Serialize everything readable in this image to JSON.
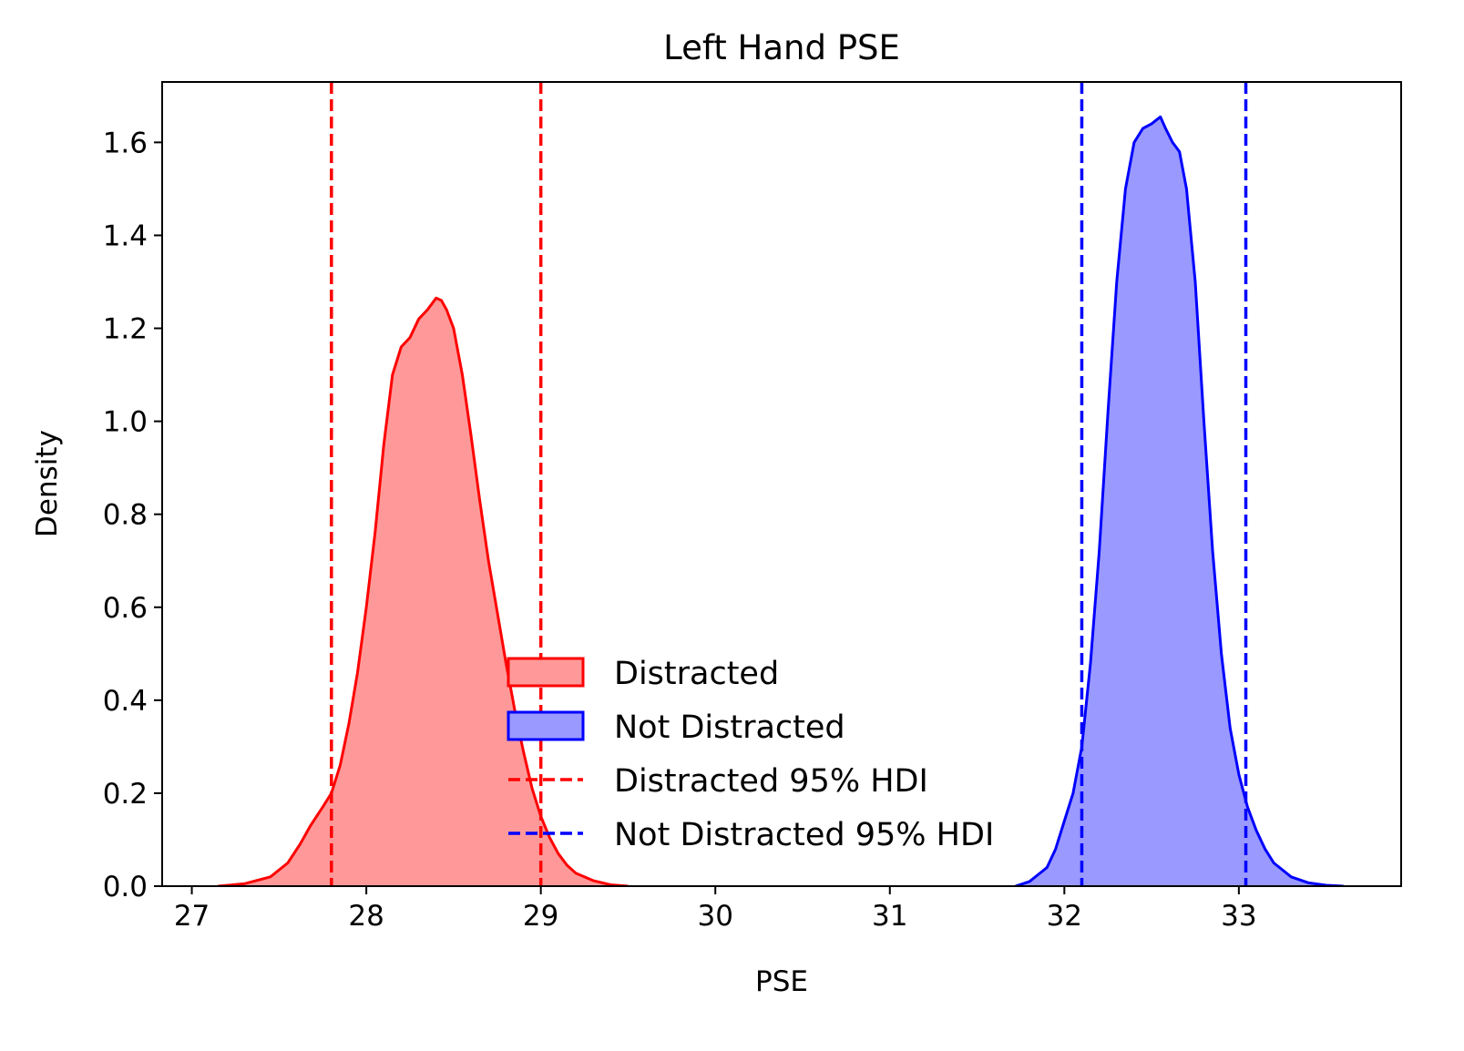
{
  "chart_data": {
    "type": "area",
    "title": "Left Hand PSE",
    "xlabel": "PSE",
    "ylabel": "Density",
    "xlim": [
      26.83,
      33.93
    ],
    "ylim": [
      0,
      1.73
    ],
    "xticks": [
      27,
      28,
      29,
      30,
      31,
      32,
      33
    ],
    "yticks": [
      0.0,
      0.2,
      0.4,
      0.6,
      0.8,
      1.0,
      1.2,
      1.4,
      1.6
    ],
    "grid": false,
    "legend_position": "lower-center",
    "series": [
      {
        "name": "Distracted",
        "color": "#ff0000",
        "fill": "#ff9999",
        "x": [
          27.15,
          27.3,
          27.45,
          27.55,
          27.62,
          27.68,
          27.75,
          27.8,
          27.85,
          27.9,
          27.95,
          28.0,
          28.05,
          28.1,
          28.15,
          28.2,
          28.25,
          28.3,
          28.35,
          28.4,
          28.43,
          28.46,
          28.5,
          28.55,
          28.6,
          28.65,
          28.7,
          28.75,
          28.8,
          28.85,
          28.9,
          28.95,
          29.0,
          29.05,
          29.1,
          29.15,
          29.2,
          29.3,
          29.4,
          29.5
        ],
        "y": [
          0.0,
          0.005,
          0.02,
          0.05,
          0.09,
          0.13,
          0.17,
          0.2,
          0.26,
          0.35,
          0.46,
          0.6,
          0.76,
          0.95,
          1.1,
          1.16,
          1.18,
          1.22,
          1.24,
          1.265,
          1.26,
          1.24,
          1.2,
          1.1,
          0.97,
          0.83,
          0.7,
          0.59,
          0.48,
          0.38,
          0.29,
          0.21,
          0.15,
          0.105,
          0.07,
          0.045,
          0.028,
          0.012,
          0.003,
          0.0
        ]
      },
      {
        "name": "Not Distracted",
        "color": "#0000ff",
        "fill": "#9999ff",
        "x": [
          31.72,
          31.8,
          31.9,
          31.95,
          32.0,
          32.05,
          32.1,
          32.15,
          32.2,
          32.25,
          32.3,
          32.35,
          32.4,
          32.45,
          32.5,
          32.55,
          32.58,
          32.62,
          32.66,
          32.7,
          32.75,
          32.8,
          32.85,
          32.9,
          32.95,
          33.0,
          33.05,
          33.1,
          33.15,
          33.2,
          33.3,
          33.4,
          33.5,
          33.6
        ],
        "y": [
          0.0,
          0.01,
          0.04,
          0.08,
          0.14,
          0.2,
          0.3,
          0.48,
          0.72,
          1.02,
          1.3,
          1.5,
          1.6,
          1.63,
          1.64,
          1.655,
          1.63,
          1.6,
          1.58,
          1.5,
          1.3,
          1.0,
          0.72,
          0.5,
          0.34,
          0.24,
          0.17,
          0.12,
          0.08,
          0.05,
          0.02,
          0.007,
          0.002,
          0.0
        ]
      }
    ],
    "hdi_lines": [
      {
        "name": "Distracted 95% HDI",
        "color": "#ff0000",
        "x": [
          27.8,
          29.0
        ]
      },
      {
        "name": "Not Distracted 95% HDI",
        "color": "#0000ff",
        "x": [
          32.1,
          33.04
        ]
      }
    ]
  }
}
